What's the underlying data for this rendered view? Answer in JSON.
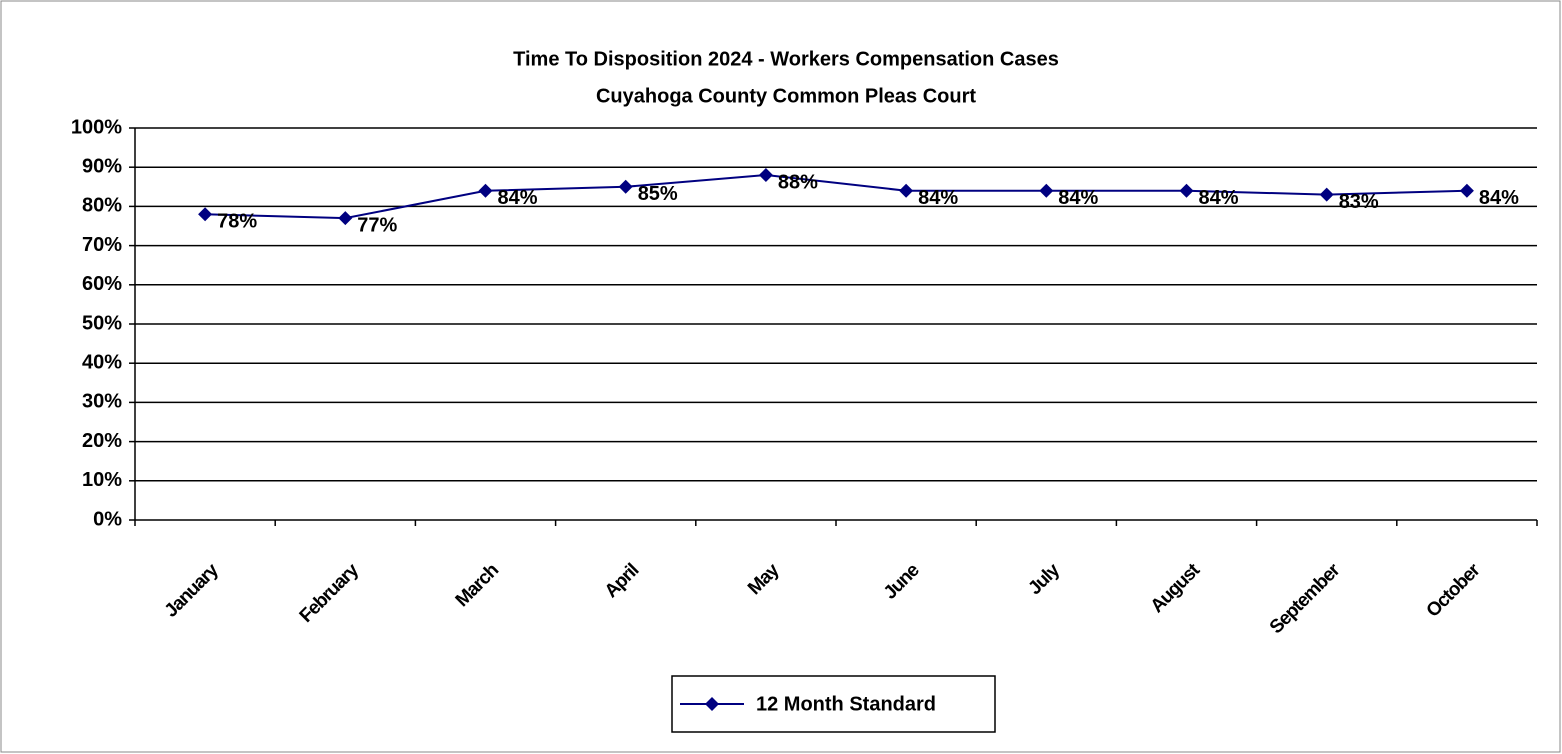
{
  "chart_data": {
    "type": "line",
    "title": "Time To Disposition 2024 - Workers Compensation Cases",
    "subtitle": "Cuyahoga County Common Pleas Court",
    "categories": [
      "January",
      "February",
      "March",
      "April",
      "May",
      "June",
      "July",
      "August",
      "September",
      "October"
    ],
    "series": [
      {
        "name": "12 Month Standard",
        "color": "#000080",
        "values": [
          78,
          77,
          84,
          85,
          88,
          84,
          84,
          84,
          83,
          84
        ],
        "value_labels": [
          "78%",
          "77%",
          "84%",
          "85%",
          "88%",
          "84%",
          "84%",
          "84%",
          "83%",
          "84%"
        ]
      }
    ],
    "ylim": [
      0,
      100
    ],
    "yticks": [
      {
        "value": 0,
        "label": "0%"
      },
      {
        "value": 10,
        "label": "10%"
      },
      {
        "value": 20,
        "label": "20%"
      },
      {
        "value": 30,
        "label": "30%"
      },
      {
        "value": 40,
        "label": "40%"
      },
      {
        "value": 50,
        "label": "50%"
      },
      {
        "value": 60,
        "label": "60%"
      },
      {
        "value": 70,
        "label": "70%"
      },
      {
        "value": 80,
        "label": "80%"
      },
      {
        "value": 90,
        "label": "90%"
      },
      {
        "value": 100,
        "label": "100%"
      }
    ],
    "grid": true,
    "legend": "bottom"
  }
}
